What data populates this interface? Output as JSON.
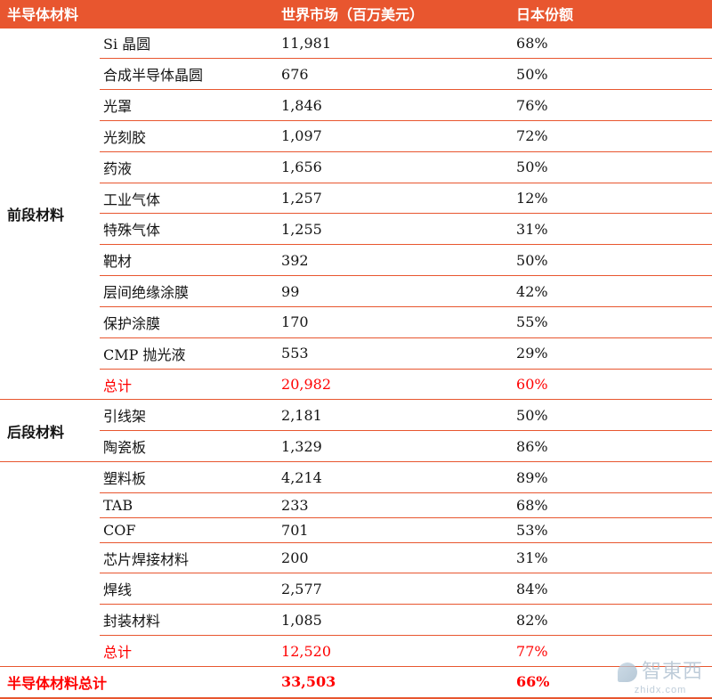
{
  "colors": {
    "header_bg": "#E8562F",
    "row_border": "#E8562F",
    "highlight_red": "#FF0000",
    "watermark": "#A9BCCD"
  },
  "table": {
    "headers": [
      "半导体材料",
      "世界市场（百万美元）",
      "日本份额"
    ],
    "groups": [
      {
        "label": "前段材料",
        "rows": [
          {
            "name": "Si 晶圆",
            "market": "11,981",
            "share": "68%"
          },
          {
            "name": "合成半导体晶圆",
            "market": "676",
            "share": "50%"
          },
          {
            "name": "光罩",
            "market": "1,846",
            "share": "76%"
          },
          {
            "name": "光刻胶",
            "market": "1,097",
            "share": "72%"
          },
          {
            "name": "药液",
            "market": "1,656",
            "share": "50%"
          },
          {
            "name": "工业气体",
            "market": "1,257",
            "share": "12%"
          },
          {
            "name": "特殊气体",
            "market": "1,255",
            "share": "31%"
          },
          {
            "name": "靶材",
            "market": "392",
            "share": "50%"
          },
          {
            "name": "层间绝缘涂膜",
            "market": "99",
            "share": "42%"
          },
          {
            "name": "保护涂膜",
            "market": "170",
            "share": "55%"
          },
          {
            "name": "CMP 抛光液",
            "market": "553",
            "share": "29%"
          },
          {
            "name": "总计",
            "market": "20,982",
            "share": "60%",
            "highlight": true
          }
        ]
      },
      {
        "label": "后段材料",
        "rows": [
          {
            "name": "引线架",
            "market": "2,181",
            "share": "50%"
          },
          {
            "name": "陶瓷板",
            "market": "1,329",
            "share": "86%"
          }
        ]
      },
      {
        "label": "",
        "rows": [
          {
            "name": "塑料板",
            "market": "4,214",
            "share": "89%"
          },
          {
            "name": "TAB",
            "market": "233",
            "share": "68%"
          },
          {
            "name": "COF",
            "market": "701",
            "share": "53%"
          },
          {
            "name": "芯片焊接材料",
            "market": "200",
            "share": "31%"
          },
          {
            "name": "焊线",
            "market": "2,577",
            "share": "84%"
          },
          {
            "name": "封装材料",
            "market": "1,085",
            "share": "82%"
          },
          {
            "name": "总计",
            "market": "12,520",
            "share": "77%",
            "highlight": true
          }
        ]
      }
    ],
    "total_row": {
      "name": "半导体材料总计",
      "market": "33,503",
      "share": "66%"
    }
  },
  "watermark": {
    "name": "智東西",
    "domain": "zhidx.com"
  }
}
